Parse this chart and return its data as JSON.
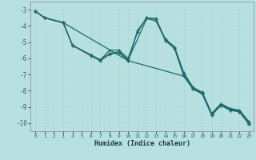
{
  "xlabel": "Humidex (Indice chaleur)",
  "xlim": [
    -0.5,
    23.5
  ],
  "ylim": [
    -10.5,
    -2.5
  ],
  "yticks": [
    -3,
    -4,
    -5,
    -6,
    -7,
    -8,
    -9,
    -10
  ],
  "xticks": [
    0,
    1,
    2,
    3,
    4,
    5,
    6,
    7,
    8,
    9,
    10,
    11,
    12,
    13,
    14,
    15,
    16,
    17,
    18,
    19,
    20,
    21,
    22,
    23
  ],
  "bg_color": "#b8e0e0",
  "grid_color": "#d8f0f0",
  "line_color": "#1a6b6b",
  "series": [
    {
      "x": [
        0,
        1,
        3,
        4,
        6,
        7,
        8,
        9,
        10,
        11,
        12,
        13,
        14,
        15,
        16,
        17,
        18,
        19,
        20,
        21,
        22,
        23
      ],
      "y": [
        -3.1,
        -3.5,
        -3.8,
        -5.2,
        -5.8,
        -6.1,
        -5.5,
        -5.5,
        -6.0,
        -4.4,
        -3.5,
        -3.6,
        -4.8,
        -5.3,
        -6.9,
        -7.8,
        -8.1,
        -9.4,
        -8.8,
        -9.1,
        -9.2,
        -9.9
      ]
    },
    {
      "x": [
        0,
        1,
        3,
        4,
        6,
        7,
        8,
        9,
        10,
        12,
        13,
        14,
        15,
        16,
        17,
        18,
        19,
        20,
        21,
        22,
        23
      ],
      "y": [
        -3.1,
        -3.5,
        -3.8,
        -5.2,
        -5.8,
        -6.1,
        -5.7,
        -5.6,
        -6.1,
        -3.55,
        -3.7,
        -4.85,
        -5.35,
        -7.0,
        -7.85,
        -8.15,
        -9.45,
        -8.85,
        -9.15,
        -9.25,
        -10.0
      ]
    },
    {
      "x": [
        0,
        1,
        3,
        4,
        6,
        7,
        8,
        9,
        10,
        16,
        17,
        18,
        19,
        20,
        21,
        22,
        23
      ],
      "y": [
        -3.1,
        -3.5,
        -3.8,
        -5.2,
        -5.85,
        -6.15,
        -5.75,
        -5.65,
        -6.15,
        -7.1,
        -7.9,
        -8.2,
        -9.5,
        -8.9,
        -9.2,
        -9.3,
        -10.05
      ]
    },
    {
      "x": [
        0,
        1,
        3,
        10,
        11,
        12,
        13,
        14,
        15,
        16,
        17,
        18,
        19,
        20,
        21,
        22,
        23
      ],
      "y": [
        -3.1,
        -3.5,
        -3.8,
        -6.15,
        -4.3,
        -3.5,
        -3.55,
        -4.9,
        -5.4,
        -7.1,
        -7.9,
        -8.2,
        -9.5,
        -8.9,
        -9.2,
        -9.3,
        -10.05
      ]
    }
  ]
}
